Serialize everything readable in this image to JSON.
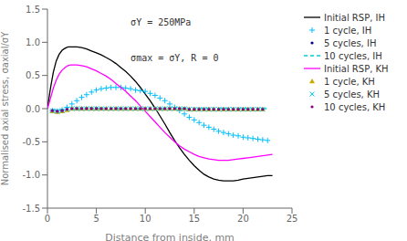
{
  "chart_data": {
    "type": "line",
    "xlabel": "Distance from inside, mm",
    "ylabel": "Normalised axial stress, σaxial/σY",
    "annotations": [
      "σY = 250MPa",
      "σmax = σY, R = 0"
    ],
    "xlim": [
      0,
      25
    ],
    "ylim": [
      -1.5,
      1.5
    ],
    "xticks": [
      0,
      5,
      10,
      15,
      20,
      25
    ],
    "yticks": [
      -1.5,
      {
        "value": -1,
        "label": "-1.0"
      },
      -0.5,
      {
        "value": 0,
        "label": "0.0"
      },
      0.5,
      {
        "value": 1,
        "label": "1.0"
      },
      1.5
    ],
    "grid": false,
    "legend": "upper right",
    "series": [
      {
        "name": "Initial RSP, IH",
        "type": "line",
        "line_style": "solid",
        "color": "#000000",
        "x": [
          0,
          0.3,
          0.6,
          0.9,
          1.2,
          1.5,
          1.8,
          2.1,
          2.4,
          2.7,
          3.0,
          3.5,
          4.0,
          4.5,
          5.0,
          5.5,
          6.0,
          6.5,
          7.0,
          7.5,
          8.0,
          8.5,
          9.0,
          9.5,
          10.0,
          10.5,
          11.0,
          11.5,
          12.0,
          12.5,
          13.0,
          13.5,
          14.0,
          14.5,
          15.0,
          15.5,
          16.0,
          16.5,
          17.0,
          17.5,
          18.0,
          18.5,
          19.0,
          19.5,
          20.0,
          20.5,
          21.0,
          21.5,
          22.0,
          22.5,
          23.0
        ],
        "values": [
          0,
          0.3,
          0.55,
          0.72,
          0.82,
          0.88,
          0.91,
          0.93,
          0.93,
          0.93,
          0.93,
          0.92,
          0.9,
          0.87,
          0.84,
          0.81,
          0.77,
          0.73,
          0.68,
          0.62,
          0.56,
          0.49,
          0.41,
          0.32,
          0.22,
          0.12,
          0.01,
          -0.11,
          -0.23,
          -0.36,
          -0.48,
          -0.59,
          -0.69,
          -0.78,
          -0.86,
          -0.93,
          -0.99,
          -1.03,
          -1.06,
          -1.08,
          -1.09,
          -1.09,
          -1.09,
          -1.08,
          -1.06,
          -1.05,
          -1.04,
          -1.03,
          -1.02,
          -1.01,
          -1.01
        ]
      },
      {
        "name": "1 cycle, IH",
        "type": "scatter",
        "marker": "plus",
        "color": "#00bfff",
        "x": [
          0.5,
          1.0,
          1.5,
          2.0,
          2.5,
          3.0,
          3.5,
          4.0,
          4.5,
          5.0,
          5.5,
          6.0,
          6.5,
          7.0,
          7.5,
          8.0,
          8.5,
          9.0,
          9.5,
          10.0,
          10.5,
          11.0,
          11.5,
          12.0,
          12.5,
          13.0,
          13.5,
          14.0,
          14.5,
          15.0,
          15.5,
          16.0,
          16.5,
          17.0,
          17.5,
          18.0,
          18.5,
          19.0,
          19.5,
          20.0,
          20.5,
          21.0,
          21.5,
          22.0,
          22.5
        ],
        "values": [
          -0.03,
          -0.04,
          -0.02,
          0.02,
          0.07,
          0.12,
          0.17,
          0.21,
          0.25,
          0.28,
          0.3,
          0.31,
          0.32,
          0.32,
          0.32,
          0.31,
          0.3,
          0.28,
          0.27,
          0.26,
          0.23,
          0.2,
          0.16,
          0.12,
          0.07,
          0.02,
          -0.03,
          -0.08,
          -0.13,
          -0.17,
          -0.21,
          -0.25,
          -0.28,
          -0.31,
          -0.34,
          -0.36,
          -0.38,
          -0.4,
          -0.41,
          -0.43,
          -0.44,
          -0.45,
          -0.46,
          -0.47,
          -0.48
        ]
      },
      {
        "name": "5 cycles, IH",
        "type": "scatter",
        "marker": "point",
        "color": "#00008b",
        "x": [
          0.5,
          1.0,
          1.5,
          2.0,
          2.5,
          3.0,
          3.5,
          4.0,
          4.5,
          5.0,
          5.5,
          6.0,
          6.5,
          7.0,
          7.5,
          8.0,
          8.5,
          9.0,
          9.5,
          10.0,
          10.5,
          11.0,
          11.5,
          12.0,
          12.5,
          13.0,
          13.5,
          14.0,
          14.5,
          15.0,
          15.5,
          16.0,
          16.5,
          17.0,
          17.5,
          18.0,
          18.5,
          19.0,
          19.5,
          20.0,
          20.5,
          21.0,
          21.5,
          22.0
        ],
        "values": [
          -0.03,
          -0.04,
          -0.03,
          -0.01,
          0.0,
          0.01,
          0.01,
          0.01,
          0.01,
          0.01,
          0.0,
          0.0,
          0.0,
          0.0,
          0.0,
          0.0,
          0.0,
          0.0,
          0.0,
          0.0,
          0.0,
          0.0,
          0.0,
          0.0,
          0.0,
          0.0,
          0.0,
          0.0,
          0.0,
          0.0,
          0.0,
          0.0,
          0.0,
          0.0,
          0.0,
          0.0,
          0.0,
          0.0,
          0.0,
          0.0,
          0.0,
          0.0,
          0.0,
          0.0
        ]
      },
      {
        "name": "10 cycles, IH",
        "type": "line",
        "line_style": "dashed",
        "color": "#00cfcf",
        "x": [
          0.5,
          1.5,
          2.5,
          3.5,
          4.5,
          5.5,
          6.5,
          7.5,
          8.5,
          9.5,
          10.5,
          11.5,
          12.5,
          13.5,
          14.5,
          15.5,
          16.5,
          17.5,
          18.5,
          19.5,
          20.5,
          21.5,
          22.5
        ],
        "values": [
          -0.02,
          -0.02,
          -0.01,
          0.0,
          0.0,
          0.0,
          0.0,
          0.0,
          0.0,
          0.0,
          0.0,
          0.0,
          0.0,
          0.0,
          0.0,
          0.0,
          0.0,
          0.0,
          0.0,
          0.0,
          0.0,
          0.0,
          0.0
        ]
      },
      {
        "name": "Initial RSP, KH",
        "type": "line",
        "line_style": "solid",
        "color": "#ff00ff",
        "x": [
          0,
          0.3,
          0.6,
          0.9,
          1.2,
          1.5,
          1.8,
          2.1,
          2.4,
          2.7,
          3.0,
          3.5,
          4.0,
          4.5,
          5.0,
          5.5,
          6.0,
          6.5,
          7.0,
          7.5,
          8.0,
          8.5,
          9.0,
          9.5,
          10.0,
          10.5,
          11.0,
          11.5,
          12.0,
          12.5,
          13.0,
          13.5,
          14.0,
          14.5,
          15.0,
          15.5,
          16.0,
          16.5,
          17.0,
          17.5,
          18.0,
          18.5,
          19.0,
          19.5,
          20.0,
          20.5,
          21.0,
          21.5,
          22.0,
          22.5,
          23.0
        ],
        "values": [
          0,
          0.15,
          0.31,
          0.43,
          0.52,
          0.58,
          0.62,
          0.65,
          0.66,
          0.66,
          0.66,
          0.65,
          0.63,
          0.6,
          0.57,
          0.53,
          0.49,
          0.44,
          0.38,
          0.32,
          0.26,
          0.19,
          0.12,
          0.04,
          -0.04,
          -0.12,
          -0.2,
          -0.28,
          -0.36,
          -0.43,
          -0.5,
          -0.56,
          -0.61,
          -0.65,
          -0.69,
          -0.72,
          -0.74,
          -0.76,
          -0.77,
          -0.78,
          -0.78,
          -0.78,
          -0.77,
          -0.76,
          -0.75,
          -0.74,
          -0.73,
          -0.72,
          -0.71,
          -0.7,
          -0.69
        ]
      },
      {
        "name": "1 cycle, KH",
        "type": "scatter",
        "marker": "triangle",
        "color": "#ccaa00",
        "x": [
          0.5,
          1.0,
          1.5,
          2.0,
          2.5,
          3.0,
          3.5,
          4.0,
          4.5,
          5.0,
          5.5,
          6.0,
          6.5,
          7.0,
          7.5,
          8.0,
          8.5,
          9.0,
          9.5,
          10.0,
          10.5,
          11.0,
          11.5,
          12.0,
          12.5,
          13.0,
          13.5,
          14.0,
          14.5,
          15.0,
          15.5,
          16.0,
          16.5,
          17.0,
          17.5,
          18.0,
          18.5,
          19.0,
          19.5,
          20.0,
          20.5,
          21.0,
          21.5,
          22.0
        ],
        "values": [
          -0.04,
          -0.05,
          -0.04,
          -0.02,
          0.0,
          0.0,
          0.0,
          0.0,
          0.0,
          0.0,
          0.0,
          0.0,
          0.0,
          0.0,
          0.0,
          0.0,
          0.0,
          0.0,
          0.0,
          0.0,
          0.0,
          0.0,
          0.0,
          0.0,
          0.0,
          0.0,
          0.0,
          0.0,
          -0.01,
          -0.01,
          -0.01,
          -0.01,
          -0.01,
          -0.01,
          -0.01,
          -0.01,
          -0.01,
          -0.01,
          -0.01,
          -0.01,
          -0.01,
          -0.01,
          -0.01,
          -0.01
        ]
      },
      {
        "name": "5 cycles, KH",
        "type": "scatter",
        "marker": "x",
        "color": "#00cfff",
        "x": [
          0.5,
          1.0,
          1.5,
          2.0,
          2.5,
          3.0,
          3.5,
          4.0,
          4.5,
          5.0,
          5.5,
          6.0,
          6.5,
          7.0,
          7.5,
          8.0,
          8.5,
          9.0,
          9.5,
          10.0,
          10.5,
          11.0,
          11.5,
          12.0,
          12.5,
          13.0,
          13.5,
          14.0,
          14.5,
          15.0,
          15.5,
          16.0,
          16.5,
          17.0,
          17.5,
          18.0,
          18.5,
          19.0,
          19.5,
          20.0,
          20.5,
          21.0,
          21.5,
          22.0
        ],
        "values": [
          -0.03,
          -0.04,
          -0.03,
          -0.01,
          0.0,
          0.0,
          0.0,
          0.0,
          0.0,
          0.0,
          0.0,
          0.0,
          0.0,
          0.0,
          0.0,
          0.0,
          0.0,
          0.0,
          0.0,
          0.0,
          0.0,
          0.0,
          0.0,
          0.0,
          0.0,
          0.0,
          0.0,
          0.0,
          -0.01,
          -0.01,
          -0.01,
          -0.01,
          -0.01,
          -0.01,
          -0.01,
          -0.01,
          -0.01,
          -0.01,
          -0.01,
          -0.01,
          -0.01,
          -0.01,
          -0.01,
          -0.01
        ]
      },
      {
        "name": "10 cycles, KH",
        "type": "scatter",
        "marker": "point",
        "color": "#880088",
        "x": [
          0.5,
          1.0,
          1.5,
          2.0,
          2.5,
          3.0,
          3.5,
          4.0,
          4.5,
          5.0,
          5.5,
          6.0,
          6.5,
          7.0,
          7.5,
          8.0,
          8.5,
          9.0,
          9.5,
          10.0,
          10.5,
          11.0,
          11.5,
          12.0,
          12.5,
          13.0,
          13.5,
          14.0,
          14.5,
          15.0,
          15.5,
          16.0,
          16.5,
          17.0,
          17.5,
          18.0,
          18.5,
          19.0,
          19.5,
          20.0,
          20.5,
          21.0,
          21.5,
          22.0
        ],
        "values": [
          -0.03,
          -0.04,
          -0.03,
          -0.01,
          0.0,
          0.0,
          0.0,
          0.0,
          0.0,
          0.0,
          0.0,
          0.0,
          0.0,
          0.0,
          0.0,
          0.0,
          0.0,
          0.0,
          0.0,
          0.0,
          0.0,
          0.0,
          0.0,
          0.0,
          0.0,
          0.0,
          0.0,
          0.0,
          -0.01,
          -0.01,
          -0.01,
          -0.01,
          -0.01,
          -0.01,
          -0.01,
          -0.01,
          -0.01,
          -0.01,
          -0.01,
          -0.01,
          -0.01,
          -0.01,
          -0.01,
          -0.01
        ]
      }
    ]
  }
}
